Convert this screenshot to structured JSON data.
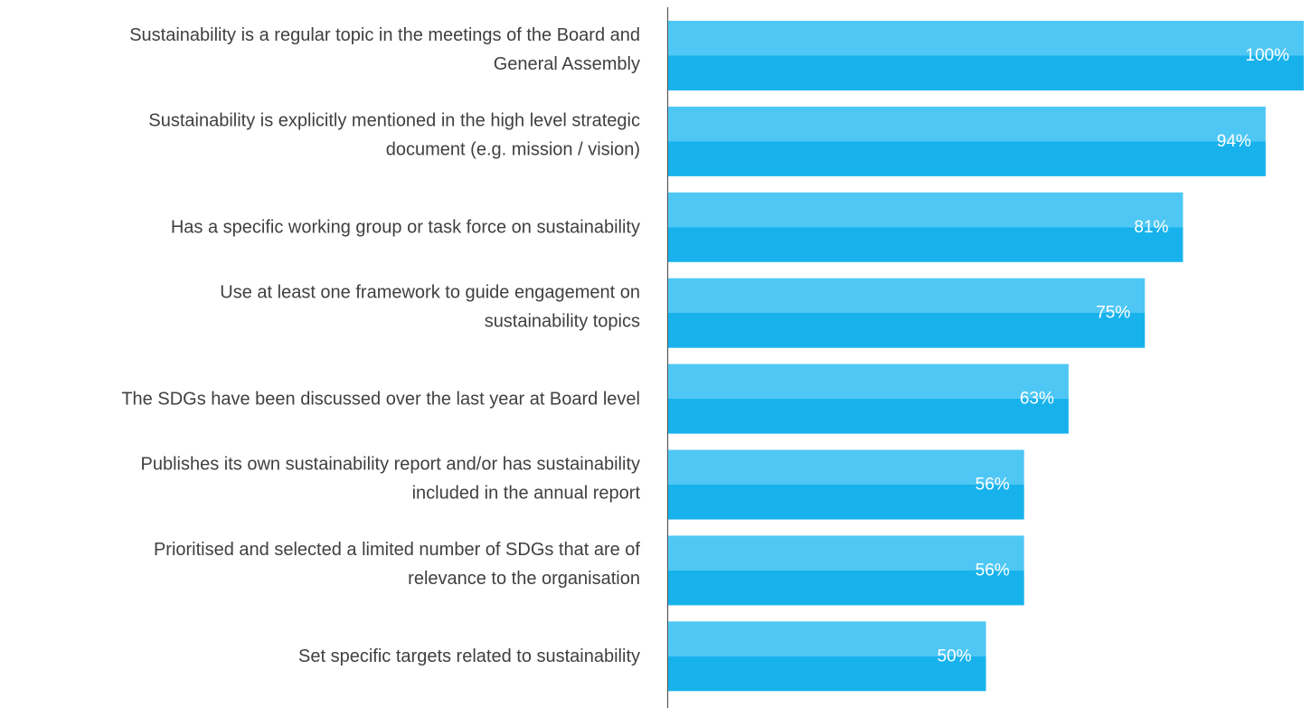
{
  "chart_data": {
    "type": "barh",
    "categories": [
      [
        "Sustainability is a regular topic in the meetings of the Board and",
        "General Assembly"
      ],
      [
        "Sustainability is explicitly mentioned in the high level strategic",
        "document (e.g. mission / vision)"
      ],
      [
        "Has a specific working group or task force on sustainability"
      ],
      [
        "Use at least one framework to guide engagement on",
        "sustainability topics"
      ],
      [
        "The SDGs have been discussed over the last year at Board level"
      ],
      [
        "Publishes its own sustainability report and/or has sustainability",
        "included in the annual report"
      ],
      [
        "Prioritised and selected a limited number of SDGs that are of",
        "relevance to the organisation"
      ],
      [
        "Set specific targets related to sustainability"
      ]
    ],
    "values": [
      100,
      94,
      81,
      75,
      63,
      56,
      56,
      50
    ],
    "value_labels": [
      "100%",
      "94%",
      "81%",
      "75%",
      "63%",
      "56%",
      "56%",
      "50%"
    ],
    "color": "#17b2ec",
    "highlight_color": "#4fc7f4"
  }
}
